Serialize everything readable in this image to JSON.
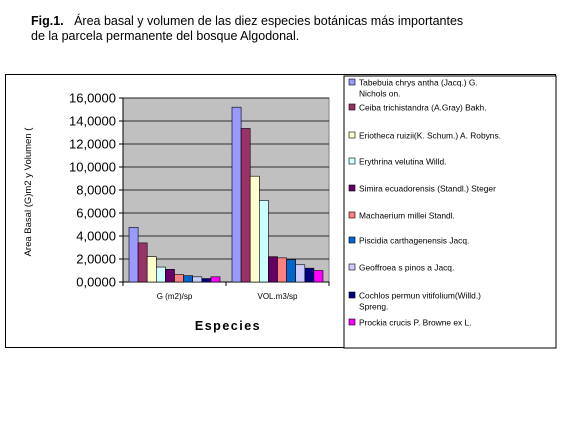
{
  "figure": {
    "label": "Fig.1.",
    "caption_line1": "Área basal y volumen de las diez especies botánicas  más importantes",
    "caption_line2": "de la parcela permanente    del bosque Algodonal."
  },
  "chart_data": {
    "type": "bar",
    "title": "",
    "xlabel": "Especies",
    "ylabel": "Area Basal (G)m2 y Volumen (",
    "ylim": [
      0,
      16
    ],
    "yticks": [
      "0,0000",
      "2,0000",
      "4,0000",
      "6,0000",
      "8,0000",
      "10,0000",
      "12,0000",
      "14,0000",
      "16,0000"
    ],
    "categories": [
      "G (m2)/sp",
      "VOL.m3/sp"
    ],
    "grid": "horizontal",
    "legend_position": "right",
    "series": [
      {
        "name": "Tabebuia chrys antha (Jacq.) G. Nichols on.",
        "color": "#9999ff",
        "values": [
          4.75,
          15.2
        ]
      },
      {
        "name": "Ceiba trichistandra (A.Gray) Bakh.",
        "color": "#993366",
        "values": [
          3.4,
          13.35
        ]
      },
      {
        "name": "Eriotheca ruizii(K. Schum.) A. Robyns.",
        "color": "#ffffcc",
        "values": [
          2.2,
          9.2
        ]
      },
      {
        "name": "Erythrina velutina Willd.",
        "color": "#ccffff",
        "values": [
          1.3,
          7.1
        ]
      },
      {
        "name": "Simira ecuadorensis  (Standl.) Steger",
        "color": "#660066",
        "values": [
          1.1,
          2.2
        ]
      },
      {
        "name": "Machaerium millei  Standl.",
        "color": "#ff8080",
        "values": [
          0.65,
          2.1
        ]
      },
      {
        "name": "Piscidia carthagenensis Jacq.",
        "color": "#0066cc",
        "values": [
          0.55,
          1.95
        ]
      },
      {
        "name": "Geoffroea s pinos a Jacq.",
        "color": "#ccccff",
        "values": [
          0.45,
          1.5
        ]
      },
      {
        "name": "Cochlos permun vitifolium(Willd.) Spreng.",
        "color": "#000080",
        "values": [
          0.3,
          1.2
        ]
      },
      {
        "name": "Prockia crucis P. Browne ex L.",
        "color": "#ff00ff",
        "values": [
          0.45,
          1.0
        ]
      }
    ]
  }
}
